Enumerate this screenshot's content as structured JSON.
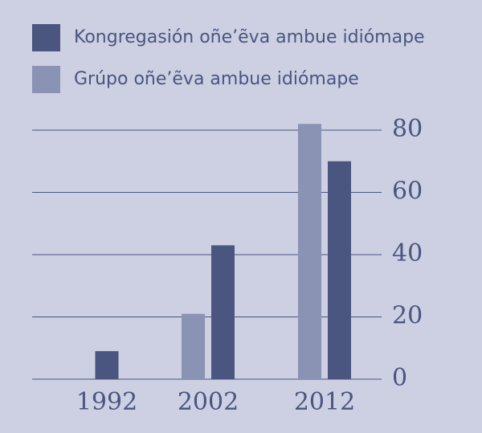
{
  "chart_data": {
    "type": "bar",
    "categories": [
      "1992",
      "2002",
      "2012"
    ],
    "series": [
      {
        "name": "Kongregasión oñe’ẽva ambue idiómape",
        "color": "#4a5580",
        "values": [
          9,
          43,
          70
        ]
      },
      {
        "name": "Grúpo oñe’ẽva ambue idiómape",
        "color": "#8a93b3",
        "values": [
          null,
          21,
          82
        ]
      }
    ],
    "ylim": [
      0,
      80
    ],
    "yticks": [
      0,
      20,
      40,
      60,
      80
    ],
    "grid": true
  }
}
